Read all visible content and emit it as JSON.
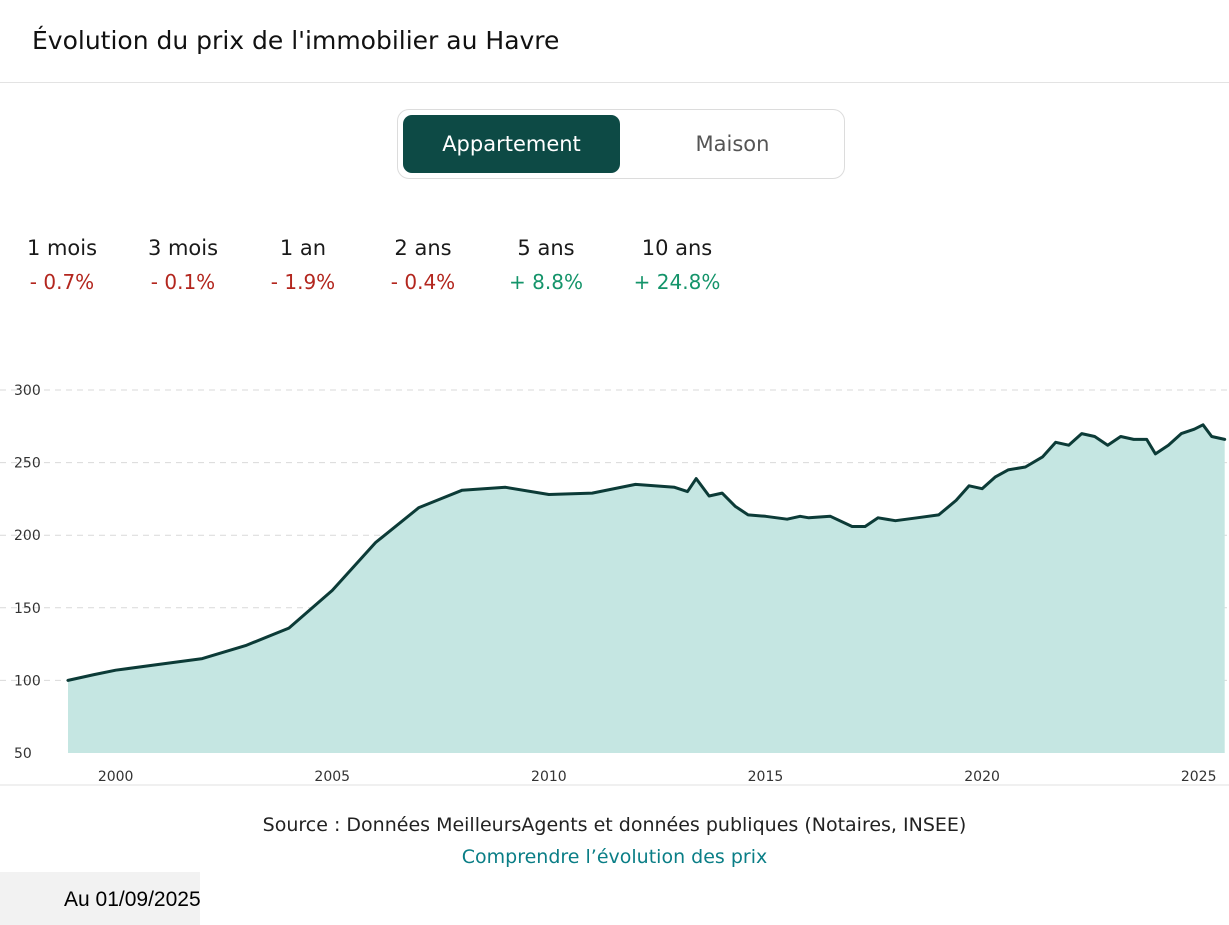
{
  "header": {
    "title": "Évolution du prix de l'immobilier au Havre"
  },
  "toggle": {
    "active": "Appartement",
    "inactive": "Maison"
  },
  "stats": [
    {
      "label": "1 mois",
      "value": "- 0.7%",
      "trend": "down"
    },
    {
      "label": "3 mois",
      "value": "- 0.1%",
      "trend": "down"
    },
    {
      "label": "1 an",
      "value": "- 1.9%",
      "trend": "down"
    },
    {
      "label": "2 ans",
      "value": "- 0.4%",
      "trend": "down"
    },
    {
      "label": "5 ans",
      "value": "+ 8.8%",
      "trend": "up"
    },
    {
      "label": "10 ans",
      "value": "+ 24.8%",
      "trend": "up"
    }
  ],
  "colors": {
    "down": "#b3261e",
    "up": "#14946a",
    "line": "#0c3b37",
    "area": "#c5e6e2",
    "grid": "#d9d9d9",
    "toggle_active": "#0d4a45"
  },
  "chart_data": {
    "type": "area",
    "title": "",
    "xlabel": "",
    "ylabel": "",
    "xlim": [
      1998.9,
      2025.7
    ],
    "ylim": [
      50,
      300
    ],
    "yticks": [
      50,
      100,
      150,
      200,
      250,
      300
    ],
    "xticks": [
      2000,
      2005,
      2010,
      2015,
      2020,
      2025
    ],
    "grid": true,
    "series": [
      {
        "x": [
          1998.9,
          1999.5,
          2000,
          2001,
          2002,
          2003,
          2004,
          2005,
          2006,
          2007,
          2007.5,
          2008,
          2009,
          2010,
          2011,
          2012,
          2012.9,
          2013.2,
          2013.4,
          2013.7,
          2014,
          2014.3,
          2014.6,
          2015,
          2015.5,
          2015.8,
          2016,
          2016.5,
          2017,
          2017.3,
          2017.6,
          2018,
          2018.5,
          2019,
          2019.4,
          2019.7,
          2020,
          2020.3,
          2020.6,
          2021,
          2021.4,
          2021.7,
          2022,
          2022.3,
          2022.6,
          2022.9,
          2023.2,
          2023.5,
          2023.8,
          2024,
          2024.3,
          2024.6,
          2024.9,
          2025.1,
          2025.3,
          2025.6
        ],
        "y": [
          100,
          104,
          107,
          111,
          115,
          124,
          136,
          162,
          195,
          219,
          225,
          231,
          233,
          228,
          229,
          235,
          233,
          230,
          239,
          227,
          229,
          220,
          214,
          213,
          211,
          213,
          212,
          213,
          206,
          206,
          212,
          210,
          212,
          214,
          224,
          234,
          232,
          240,
          245,
          247,
          254,
          264,
          262,
          270,
          268,
          262,
          268,
          266,
          266,
          256,
          262,
          270,
          273,
          276,
          268,
          266
        ]
      }
    ]
  },
  "source": {
    "text": "Source : Données MeilleursAgents et données publiques (Notaires, INSEE)"
  },
  "link": {
    "text": "Comprendre l’évolution des prix"
  },
  "footer": {
    "date": "Au 01/09/2025"
  }
}
